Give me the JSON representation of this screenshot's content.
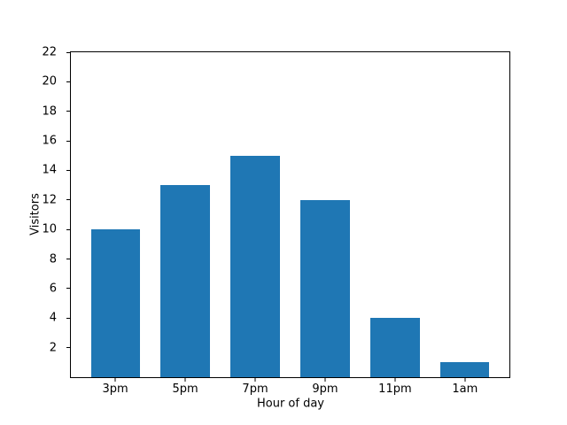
{
  "chart_data": {
    "type": "bar",
    "title": "",
    "categories": [
      "3pm",
      "5pm",
      "7pm",
      "9pm",
      "11pm",
      "1am"
    ],
    "values": [
      10,
      13,
      15,
      12,
      4,
      1
    ],
    "xlabel": "Hour of day",
    "ylabel": "Visitors",
    "ylim": [
      0,
      22
    ],
    "yticks": [
      2,
      4,
      6,
      8,
      10,
      12,
      14,
      16,
      18,
      20,
      22
    ],
    "bar_color": "#1f77b4",
    "bar_width": 0.7,
    "x_margin": 0.05,
    "grid": false,
    "legend": "none",
    "spines": "all-four",
    "background_color": "#ffffff",
    "text_color": "#000000"
  }
}
